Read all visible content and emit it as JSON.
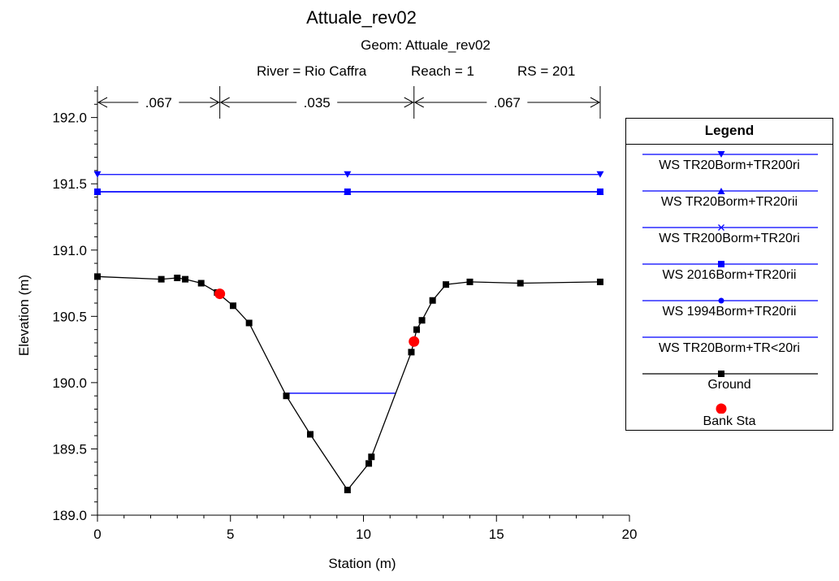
{
  "chart_data": {
    "type": "line",
    "title": "Attuale_rev02",
    "subtitle": "Geom: Attuale_rev02",
    "location": {
      "river": "River = Rio Caffra",
      "reach": "Reach = 1",
      "rs": "RS = 201"
    },
    "xlabel": "Station (m)",
    "ylabel": "Elevation (m)",
    "xlim": [
      0,
      20
    ],
    "ylim": [
      189.0,
      192.2
    ],
    "x_ticks": [
      0,
      5,
      10,
      15,
      20
    ],
    "x_tick_labels": [
      "0",
      "5",
      "10",
      "15",
      "20"
    ],
    "y_ticks": [
      189.0,
      189.5,
      190.0,
      190.5,
      191.0,
      191.5,
      192.0
    ],
    "y_tick_labels": [
      "189.0",
      "189.5",
      "190.0",
      "190.5",
      "191.0",
      "191.5",
      "192.0"
    ],
    "grid": false,
    "legend_position": "right",
    "legend_title": "Legend",
    "manning": [
      {
        "label": ".067",
        "x_start": 0,
        "x_end": 4.6
      },
      {
        "label": ".035",
        "x_start": 4.6,
        "x_end": 11.9
      },
      {
        "label": ".067",
        "x_start": 11.9,
        "x_end": 18.9
      }
    ],
    "series": [
      {
        "name": "WS TR20Borm+TR200ri",
        "color": "#0000ff",
        "marker": "triangle-down",
        "x": [
          0,
          9.4,
          18.9
        ],
        "y": [
          191.57,
          191.57,
          191.57
        ]
      },
      {
        "name": "WS TR20Borm+TR20rii",
        "color": "#0000ff",
        "marker": "triangle-up",
        "x": [
          0,
          9.4,
          18.9
        ],
        "y": [
          191.44,
          191.44,
          191.44
        ]
      },
      {
        "name": "WS TR200Borm+TR20ri",
        "color": "#0000ff",
        "marker": "x",
        "x": [
          0,
          9.4,
          18.9
        ],
        "y": [
          191.44,
          191.44,
          191.44
        ]
      },
      {
        "name": "WS 2016Borm+TR20rii",
        "color": "#0000ff",
        "marker": "square",
        "x": [
          0,
          9.4,
          18.9
        ],
        "y": [
          191.44,
          191.44,
          191.44
        ]
      },
      {
        "name": "WS 1994Borm+TR20rii",
        "color": "#0000ff",
        "marker": "circle",
        "x": [
          0,
          9.4,
          18.9
        ],
        "y": [
          191.44,
          191.44,
          191.44
        ]
      },
      {
        "name": "WS TR20Borm+TR<20ri",
        "color": "#0000ff",
        "marker": "none",
        "x": [
          7.1,
          11.2
        ],
        "y": [
          189.92,
          189.92
        ]
      },
      {
        "name": "Ground",
        "color": "#000000",
        "marker": "square",
        "x": [
          0,
          2.4,
          3.0,
          3.3,
          3.9,
          4.5,
          5.1,
          5.7,
          7.1,
          8.0,
          9.4,
          10.2,
          10.3,
          11.8,
          12.0,
          12.2,
          12.6,
          13.1,
          14.0,
          15.9,
          18.9
        ],
        "y": [
          190.8,
          190.78,
          190.79,
          190.78,
          190.75,
          190.68,
          190.58,
          190.45,
          189.9,
          189.61,
          189.19,
          189.39,
          189.44,
          190.23,
          190.4,
          190.47,
          190.62,
          190.74,
          190.76,
          190.75,
          190.76
        ]
      },
      {
        "name": "Bank Sta",
        "color": "#ff0000",
        "marker": "dot",
        "x": [
          4.6,
          11.9
        ],
        "y": [
          190.67,
          190.31
        ]
      }
    ]
  }
}
